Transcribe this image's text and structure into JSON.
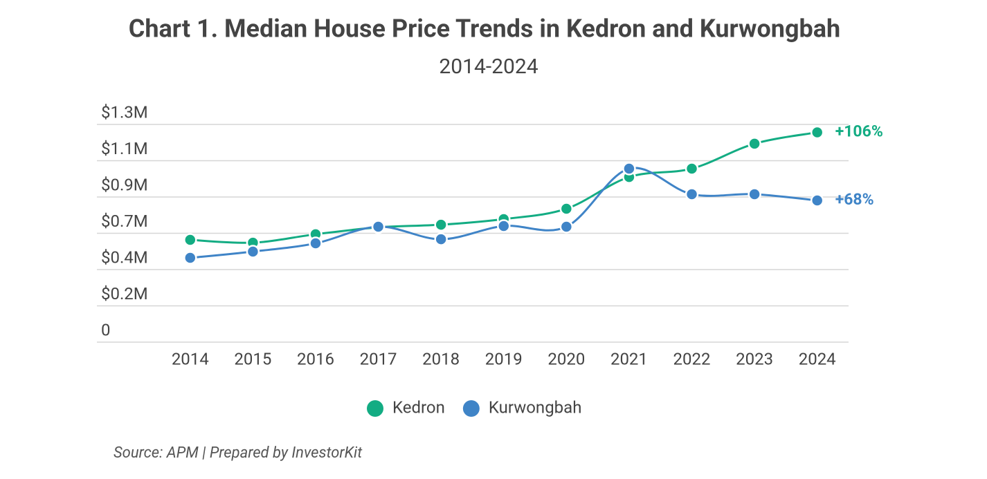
{
  "chart_data": {
    "type": "line",
    "title": "Chart 1. Median House Price Trends in Kedron and Kurwongbah",
    "subtitle": "2014-2024",
    "source": "Source: APM | Prepared by InvestorKit",
    "categories": [
      "2014",
      "2015",
      "2016",
      "2017",
      "2018",
      "2019",
      "2020",
      "2021",
      "2022",
      "2023",
      "2024"
    ],
    "series": [
      {
        "name": "Kedron",
        "color": "#13ac83",
        "end_label": "+106%",
        "values": [
          620000,
          603000,
          654000,
          696000,
          712000,
          746000,
          809000,
          1001000,
          1052000,
          1203000,
          1272000
        ]
      },
      {
        "name": "Kurwongbah",
        "color": "#3f84c7",
        "end_label": "+68%",
        "values": [
          511000,
          549000,
          599000,
          700000,
          624000,
          704000,
          700000,
          1052000,
          897000,
          897000,
          859000
        ]
      }
    ],
    "ylim": [
      0,
      1320000
    ],
    "yticks": [
      0,
      {
        "value": 220000,
        "label": "$0.2M"
      },
      {
        "value": 440000,
        "label": "$0.4M"
      },
      {
        "value": 660000,
        "label": "$0.7M"
      },
      {
        "value": 880000,
        "label": "$0.9M"
      },
      {
        "value": 1100000,
        "label": "$1.1M"
      },
      {
        "value": 1320000,
        "label": "$1.3M"
      }
    ],
    "grid": true,
    "legend": "bottom"
  }
}
